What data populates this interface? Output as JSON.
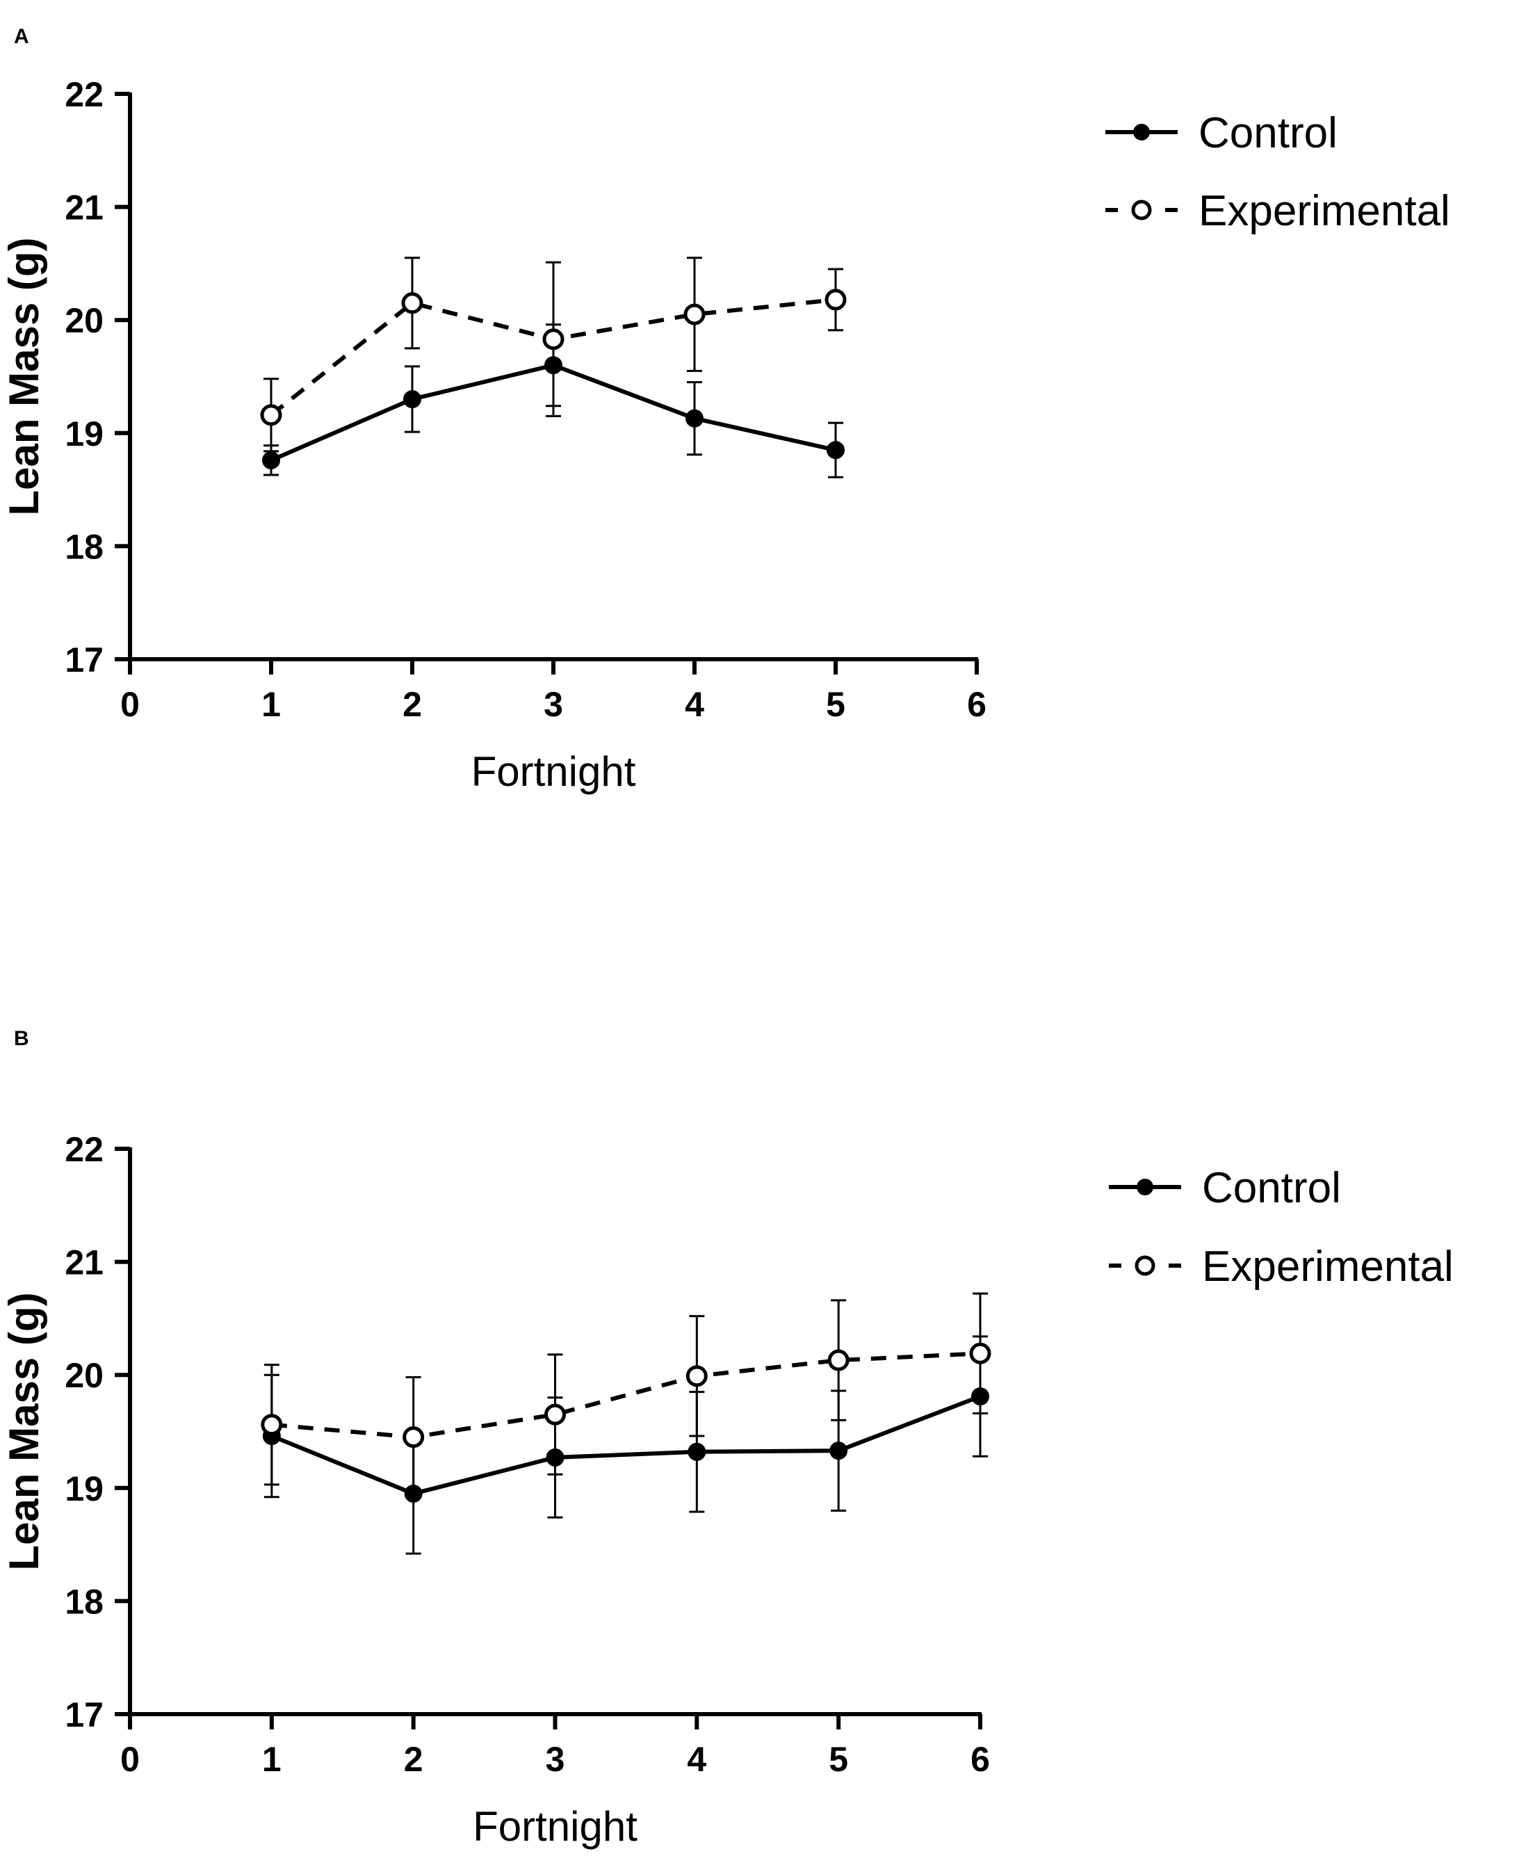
{
  "figure": {
    "panel_labels": [
      "A",
      "B"
    ]
  },
  "chart_data": [
    {
      "panel": "A",
      "type": "line",
      "title": "",
      "xlabel": "Fortnight",
      "ylabel": "Lean Mass (g)",
      "xlim": [
        0,
        6
      ],
      "ylim": [
        17,
        22
      ],
      "xticks": [
        "0",
        "1",
        "2",
        "3",
        "4",
        "5",
        "6"
      ],
      "yticks": [
        "17",
        "18",
        "19",
        "20",
        "21",
        "22"
      ],
      "grid": false,
      "legend_position": "top-right, outside plot",
      "series": [
        {
          "name": "Control",
          "line_style": "solid",
          "marker": "filled-circle",
          "x": [
            1,
            2,
            3,
            4,
            5
          ],
          "y": [
            18.76,
            19.3,
            19.6,
            19.13,
            18.85
          ],
          "error": [
            0.13,
            0.29,
            0.36,
            0.32,
            0.24
          ]
        },
        {
          "name": "Experimental",
          "line_style": "dashed",
          "marker": "open-circle",
          "x": [
            1,
            2,
            3,
            4,
            5
          ],
          "y": [
            19.16,
            20.15,
            19.83,
            20.05,
            20.18
          ],
          "error": [
            0.32,
            0.4,
            0.68,
            0.5,
            0.27
          ]
        }
      ]
    },
    {
      "panel": "B",
      "type": "line",
      "title": "",
      "xlabel": "Fortnight",
      "ylabel": "Lean Mass (g)",
      "xlim": [
        0,
        6
      ],
      "ylim": [
        17,
        22
      ],
      "xticks": [
        "0",
        "1",
        "2",
        "3",
        "4",
        "5",
        "6"
      ],
      "yticks": [
        "17",
        "18",
        "19",
        "20",
        "21",
        "22"
      ],
      "grid": false,
      "legend_position": "top-right, outside plot",
      "series": [
        {
          "name": "Control",
          "line_style": "solid",
          "marker": "filled-circle",
          "x": [
            1,
            2,
            3,
            4,
            5,
            6
          ],
          "y": [
            19.46,
            18.95,
            19.27,
            19.32,
            19.33,
            19.81
          ],
          "error": [
            0.54,
            0.53,
            0.53,
            0.53,
            0.53,
            0.53
          ]
        },
        {
          "name": "Experimental",
          "line_style": "dashed",
          "marker": "open-circle",
          "x": [
            1,
            2,
            3,
            4,
            5,
            6
          ],
          "y": [
            19.56,
            19.45,
            19.65,
            19.99,
            20.13,
            20.19
          ],
          "error": [
            0.53,
            0.53,
            0.53,
            0.53,
            0.53,
            0.53
          ]
        }
      ]
    }
  ]
}
